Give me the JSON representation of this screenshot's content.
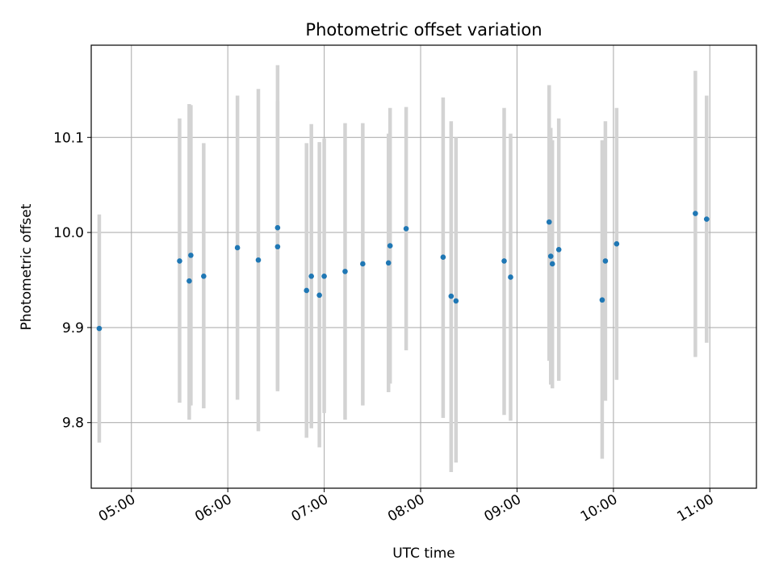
{
  "chart_data": {
    "type": "scatter",
    "title": "Photometric offset variation",
    "xlabel": "UTC time",
    "ylabel": "Photometric offset",
    "x_unit": "UTC time (HH:MM)",
    "xlim": [
      "04:35",
      "11:29"
    ],
    "ylim": [
      9.731,
      10.197
    ],
    "xticks": [
      "05:00",
      "06:00",
      "07:00",
      "08:00",
      "09:00",
      "10:00",
      "11:00"
    ],
    "yticks": [
      9.8,
      9.9,
      10.0,
      10.1
    ],
    "grid": true,
    "legend": "none",
    "colors": {
      "points": "#1f77b4",
      "error_bars": "#d3d3d3",
      "grid": "#b0b0b0"
    },
    "points": [
      {
        "x": "04:40",
        "y": 9.899,
        "lo": 9.779,
        "hi": 10.019
      },
      {
        "x": "05:30",
        "y": 9.97,
        "lo": 9.821,
        "hi": 10.12
      },
      {
        "x": "05:36",
        "y": 9.949,
        "lo": 9.803,
        "hi": 10.135
      },
      {
        "x": "05:37",
        "y": 9.976,
        "lo": 9.818,
        "hi": 10.134
      },
      {
        "x": "05:45",
        "y": 9.954,
        "lo": 9.815,
        "hi": 10.094
      },
      {
        "x": "06:06",
        "y": 9.984,
        "lo": 9.824,
        "hi": 10.144
      },
      {
        "x": "06:19",
        "y": 9.971,
        "lo": 9.791,
        "hi": 10.151
      },
      {
        "x": "06:31",
        "y": 9.985,
        "lo": 9.833,
        "hi": 10.138
      },
      {
        "x": "06:31",
        "y": 10.005,
        "lo": 9.835,
        "hi": 10.176
      },
      {
        "x": "06:49",
        "y": 9.939,
        "lo": 9.784,
        "hi": 10.094
      },
      {
        "x": "06:52",
        "y": 9.954,
        "lo": 9.794,
        "hi": 10.114
      },
      {
        "x": "06:57",
        "y": 9.934,
        "lo": 9.774,
        "hi": 10.095
      },
      {
        "x": "07:00",
        "y": 9.954,
        "lo": 9.81,
        "hi": 10.099
      },
      {
        "x": "07:13",
        "y": 9.959,
        "lo": 9.803,
        "hi": 10.115
      },
      {
        "x": "07:24",
        "y": 9.967,
        "lo": 9.818,
        "hi": 10.115
      },
      {
        "x": "07:40",
        "y": 9.968,
        "lo": 9.832,
        "hi": 10.104
      },
      {
        "x": "07:41",
        "y": 9.986,
        "lo": 9.841,
        "hi": 10.131
      },
      {
        "x": "07:51",
        "y": 10.004,
        "lo": 9.876,
        "hi": 10.132
      },
      {
        "x": "08:14",
        "y": 9.974,
        "lo": 9.805,
        "hi": 10.142
      },
      {
        "x": "08:19",
        "y": 9.933,
        "lo": 9.748,
        "hi": 10.117
      },
      {
        "x": "08:22",
        "y": 9.928,
        "lo": 9.758,
        "hi": 10.1
      },
      {
        "x": "08:52",
        "y": 9.97,
        "lo": 9.808,
        "hi": 10.131
      },
      {
        "x": "08:56",
        "y": 9.953,
        "lo": 9.802,
        "hi": 10.104
      },
      {
        "x": "09:20",
        "y": 10.011,
        "lo": 9.865,
        "hi": 10.155
      },
      {
        "x": "09:21",
        "y": 9.975,
        "lo": 9.84,
        "hi": 10.11
      },
      {
        "x": "09:22",
        "y": 9.967,
        "lo": 9.836,
        "hi": 10.097
      },
      {
        "x": "09:26",
        "y": 9.982,
        "lo": 9.844,
        "hi": 10.12
      },
      {
        "x": "09:53",
        "y": 9.929,
        "lo": 9.762,
        "hi": 10.097
      },
      {
        "x": "09:55",
        "y": 9.97,
        "lo": 9.823,
        "hi": 10.117
      },
      {
        "x": "10:02",
        "y": 9.988,
        "lo": 9.845,
        "hi": 10.131
      },
      {
        "x": "10:51",
        "y": 10.02,
        "lo": 9.869,
        "hi": 10.17
      },
      {
        "x": "10:58",
        "y": 10.014,
        "lo": 9.884,
        "hi": 10.144
      }
    ]
  }
}
